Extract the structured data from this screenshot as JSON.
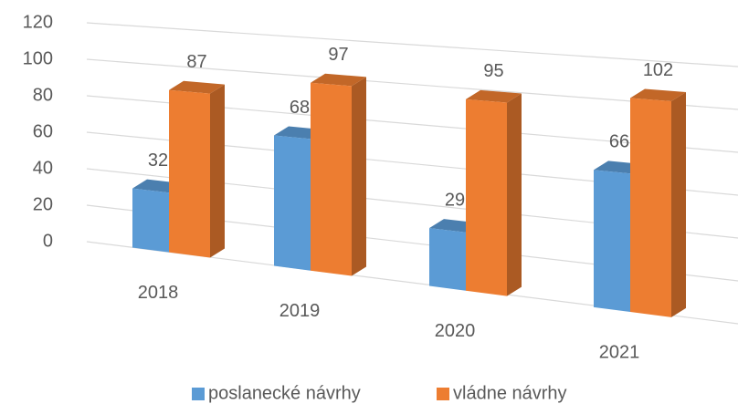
{
  "chart_data": {
    "type": "bar3d",
    "categories": [
      "2018",
      "2019",
      "2020",
      "2021"
    ],
    "series": [
      {
        "name": "poslanecké návrhy",
        "color": "#5b9bd5",
        "values": [
          32,
          68,
          29,
          66
        ]
      },
      {
        "name": "vládne návrhy",
        "color": "#ed7d31",
        "values": [
          87,
          97,
          95,
          102
        ]
      }
    ],
    "ylim": [
      0,
      120
    ],
    "yticks": [
      0,
      20,
      40,
      60,
      80,
      100,
      120
    ],
    "grid": true,
    "legend": "bottom",
    "data_labels": true
  }
}
